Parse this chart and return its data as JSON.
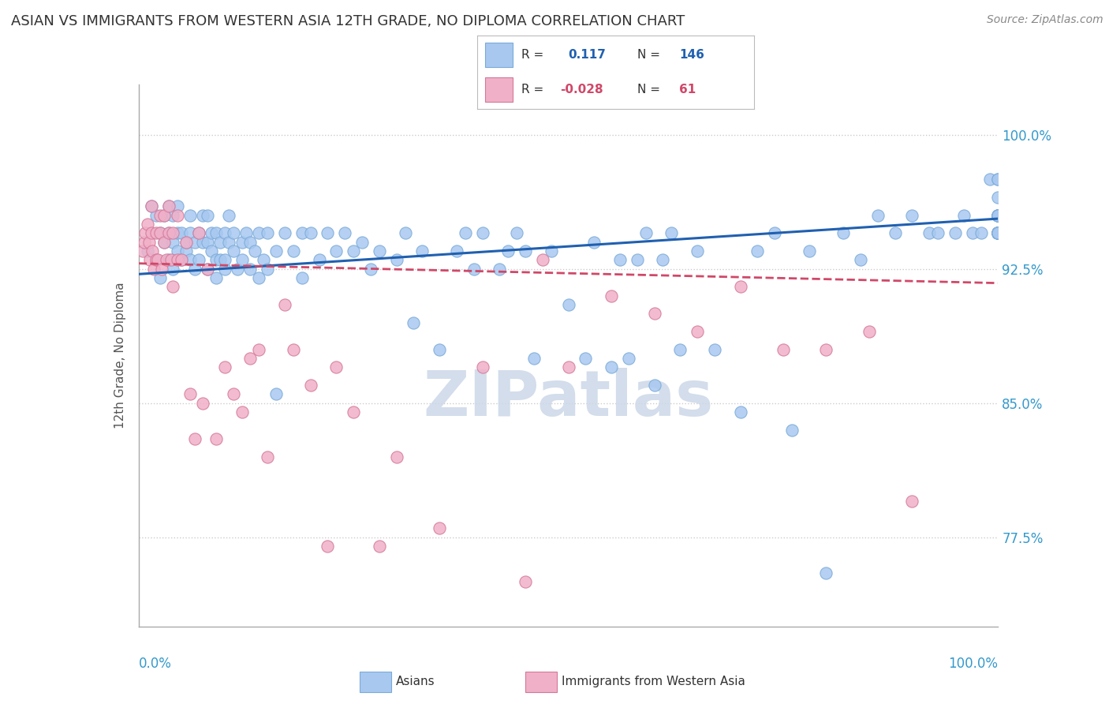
{
  "title": "ASIAN VS IMMIGRANTS FROM WESTERN ASIA 12TH GRADE, NO DIPLOMA CORRELATION CHART",
  "source": "Source: ZipAtlas.com",
  "ylabel": "12th Grade, No Diploma",
  "yticks": [
    0.775,
    0.85,
    0.925,
    1.0
  ],
  "ytick_labels": [
    "77.5%",
    "85.0%",
    "92.5%",
    "100.0%"
  ],
  "xmin": 0.0,
  "xmax": 1.0,
  "ymin": 0.725,
  "ymax": 1.028,
  "blue_R": 0.117,
  "blue_N": 146,
  "pink_R": -0.028,
  "pink_N": 61,
  "blue_color": "#a8c8f0",
  "blue_edge": "#7aaad8",
  "pink_color": "#f0b0c8",
  "pink_edge": "#d47898",
  "blue_line_color": "#2060b0",
  "pink_line_color": "#d04868",
  "grid_color": "#cccccc",
  "background_color": "#ffffff",
  "watermark_color": "#ccd8e8",
  "title_fontsize": 13,
  "source_fontsize": 10,
  "axis_label_fontsize": 11,
  "blue_line_x0": 0.0,
  "blue_line_y0": 0.922,
  "blue_line_x1": 1.0,
  "blue_line_y1": 0.953,
  "pink_line_x0": 0.0,
  "pink_line_y0": 0.928,
  "pink_line_x1": 1.0,
  "pink_line_y1": 0.917,
  "blue_scatter_x": [
    0.01,
    0.015,
    0.02,
    0.02,
    0.025,
    0.025,
    0.03,
    0.03,
    0.035,
    0.035,
    0.035,
    0.04,
    0.04,
    0.04,
    0.045,
    0.045,
    0.045,
    0.05,
    0.05,
    0.055,
    0.055,
    0.06,
    0.06,
    0.06,
    0.065,
    0.065,
    0.07,
    0.07,
    0.075,
    0.075,
    0.08,
    0.08,
    0.08,
    0.085,
    0.085,
    0.09,
    0.09,
    0.09,
    0.095,
    0.095,
    0.1,
    0.1,
    0.1,
    0.105,
    0.105,
    0.11,
    0.11,
    0.115,
    0.12,
    0.12,
    0.125,
    0.13,
    0.13,
    0.135,
    0.14,
    0.14,
    0.145,
    0.15,
    0.15,
    0.16,
    0.16,
    0.17,
    0.18,
    0.19,
    0.19,
    0.2,
    0.21,
    0.22,
    0.23,
    0.24,
    0.25,
    0.26,
    0.27,
    0.28,
    0.3,
    0.31,
    0.32,
    0.33,
    0.35,
    0.37,
    0.38,
    0.39,
    0.4,
    0.42,
    0.43,
    0.44,
    0.45,
    0.46,
    0.48,
    0.5,
    0.52,
    0.53,
    0.55,
    0.56,
    0.57,
    0.58,
    0.59,
    0.6,
    0.61,
    0.62,
    0.63,
    0.65,
    0.67,
    0.7,
    0.72,
    0.74,
    0.76,
    0.78,
    0.8,
    0.82,
    0.84,
    0.86,
    0.88,
    0.9,
    0.92,
    0.93,
    0.95,
    0.96,
    0.97,
    0.98,
    0.99,
    1.0,
    1.0,
    1.0,
    1.0,
    1.0,
    1.0,
    1.0,
    1.0,
    1.0,
    1.0,
    1.0,
    1.0,
    1.0,
    1.0,
    1.0,
    1.0,
    1.0,
    1.0,
    1.0,
    1.0,
    1.0,
    1.0,
    1.0,
    1.0,
    1.0
  ],
  "blue_scatter_y": [
    0.935,
    0.96,
    0.955,
    0.93,
    0.945,
    0.92,
    0.94,
    0.955,
    0.93,
    0.945,
    0.96,
    0.925,
    0.94,
    0.955,
    0.935,
    0.945,
    0.96,
    0.93,
    0.945,
    0.935,
    0.94,
    0.93,
    0.945,
    0.955,
    0.925,
    0.94,
    0.945,
    0.93,
    0.94,
    0.955,
    0.925,
    0.94,
    0.955,
    0.935,
    0.945,
    0.93,
    0.92,
    0.945,
    0.94,
    0.93,
    0.945,
    0.925,
    0.93,
    0.94,
    0.955,
    0.935,
    0.945,
    0.925,
    0.94,
    0.93,
    0.945,
    0.925,
    0.94,
    0.935,
    0.945,
    0.92,
    0.93,
    0.945,
    0.925,
    0.855,
    0.935,
    0.945,
    0.935,
    0.945,
    0.92,
    0.945,
    0.93,
    0.945,
    0.935,
    0.945,
    0.935,
    0.94,
    0.925,
    0.935,
    0.93,
    0.945,
    0.895,
    0.935,
    0.88,
    0.935,
    0.945,
    0.925,
    0.945,
    0.925,
    0.935,
    0.945,
    0.935,
    0.875,
    0.935,
    0.905,
    0.875,
    0.94,
    0.87,
    0.93,
    0.875,
    0.93,
    0.945,
    0.86,
    0.93,
    0.945,
    0.88,
    0.935,
    0.88,
    0.845,
    0.935,
    0.945,
    0.835,
    0.935,
    0.755,
    0.945,
    0.93,
    0.955,
    0.945,
    0.955,
    0.945,
    0.945,
    0.945,
    0.955,
    0.945,
    0.945,
    0.975,
    0.945,
    0.955,
    0.945,
    0.955,
    0.945,
    0.945,
    0.945,
    0.945,
    0.955,
    0.945,
    0.955,
    0.945,
    0.945,
    0.975,
    0.945,
    0.955,
    0.945,
    0.955,
    0.945,
    0.945,
    0.945,
    0.945,
    0.955,
    0.965,
    0.975
  ],
  "pink_scatter_x": [
    0.005,
    0.007,
    0.008,
    0.01,
    0.012,
    0.013,
    0.015,
    0.015,
    0.016,
    0.018,
    0.02,
    0.02,
    0.022,
    0.025,
    0.025,
    0.027,
    0.03,
    0.03,
    0.032,
    0.035,
    0.035,
    0.038,
    0.04,
    0.04,
    0.045,
    0.045,
    0.05,
    0.055,
    0.06,
    0.065,
    0.07,
    0.075,
    0.08,
    0.09,
    0.1,
    0.11,
    0.12,
    0.13,
    0.14,
    0.15,
    0.17,
    0.18,
    0.2,
    0.22,
    0.23,
    0.25,
    0.28,
    0.3,
    0.35,
    0.4,
    0.45,
    0.47,
    0.5,
    0.55,
    0.6,
    0.65,
    0.7,
    0.75,
    0.8,
    0.85,
    0.9
  ],
  "pink_scatter_y": [
    0.935,
    0.94,
    0.945,
    0.95,
    0.94,
    0.93,
    0.945,
    0.96,
    0.935,
    0.925,
    0.945,
    0.93,
    0.93,
    0.945,
    0.955,
    0.925,
    0.94,
    0.955,
    0.93,
    0.945,
    0.96,
    0.93,
    0.915,
    0.945,
    0.93,
    0.955,
    0.93,
    0.94,
    0.855,
    0.83,
    0.945,
    0.85,
    0.925,
    0.83,
    0.87,
    0.855,
    0.845,
    0.875,
    0.88,
    0.82,
    0.905,
    0.88,
    0.86,
    0.77,
    0.87,
    0.845,
    0.77,
    0.82,
    0.78,
    0.87,
    0.75,
    0.93,
    0.87,
    0.91,
    0.9,
    0.89,
    0.915,
    0.88,
    0.88,
    0.89,
    0.795
  ]
}
